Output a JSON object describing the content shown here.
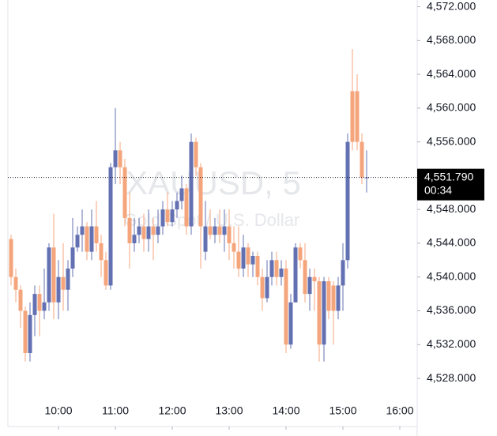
{
  "chart_data": {
    "type": "candlestick",
    "watermark_symbol": "XAUUSD, 5",
    "watermark_description": "Gold Spot / U.S. Dollar",
    "x": [
      0,
      1,
      2,
      3,
      4,
      5,
      6,
      7,
      8,
      9,
      10,
      11,
      12,
      13,
      14,
      15,
      16,
      17,
      18,
      19,
      20,
      21,
      22,
      23,
      24,
      25,
      26,
      27,
      28,
      29,
      30,
      31,
      32,
      33,
      34,
      35,
      36,
      37,
      38,
      39,
      40,
      41,
      42,
      43,
      44,
      45,
      46,
      47,
      48,
      49,
      50,
      51,
      52,
      53,
      54,
      55,
      56,
      57,
      58,
      59,
      60,
      61,
      62,
      63,
      64,
      65,
      66,
      67,
      68,
      69,
      70,
      71,
      72,
      73,
      74,
      75
    ],
    "open": [
      4544.5,
      4540,
      4538.5,
      4536,
      4531,
      4535.5,
      4538,
      4536,
      4537,
      4543.5,
      4537,
      4540,
      4538.5,
      4541,
      4543.5,
      4545,
      4546,
      4543,
      4546,
      4544,
      4542,
      4539,
      4553,
      4555,
      4553,
      4547,
      4544,
      4545,
      4546,
      4544.5,
      4546,
      4545,
      4546,
      4548,
      4546.5,
      4548,
      4549,
      4550.5,
      4546,
      4556,
      4553,
      4543,
      4546,
      4545,
      4546,
      4545,
      4546,
      4544,
      4543,
      4541,
      4543.5,
      4541.5,
      4542.5,
      4540,
      4537.5,
      4540,
      4542,
      4540,
      4541,
      4532,
      4537,
      4543.5,
      4542,
      4538,
      4540,
      4539.5,
      4532,
      4539.5,
      4539,
      4536,
      4539,
      4542,
      4562,
      4562,
      4556,
      4551.79
    ],
    "high": [
      4545,
      4541,
      4539,
      4536.5,
      4537,
      4539,
      4539,
      4541,
      4544,
      4547.5,
      4542,
      4544,
      4542,
      4547,
      4546,
      4548,
      4546.5,
      4548,
      4549,
      4545,
      4543,
      4553.5,
      4560,
      4556,
      4554,
      4550,
      4547,
      4547,
      4547.5,
      4548,
      4547,
      4548,
      4549,
      4550,
      4549,
      4550,
      4552,
      4551,
      4557,
      4556.5,
      4553.5,
      4549,
      4548,
      4547,
      4548,
      4548,
      4548,
      4546,
      4546,
      4545,
      4544,
      4543,
      4543,
      4541,
      4542,
      4543,
      4543,
      4542,
      4542,
      4538,
      4544,
      4544,
      4544,
      4541,
      4541,
      4540,
      4540,
      4540,
      4539.5,
      4540,
      4544,
      4557,
      4567,
      4564,
      4557,
      4555
    ],
    "low": [
      4539,
      4537,
      4534,
      4530,
      4530,
      4533,
      4533,
      4535,
      4536,
      4535,
      4535,
      4536,
      4536,
      4540,
      4543,
      4543,
      4542,
      4542,
      4543,
      4540,
      4538.5,
      4538.5,
      4551,
      4551,
      4546,
      4541,
      4543,
      4544,
      4543,
      4543,
      4542,
      4544,
      4545,
      4546,
      4546,
      4547,
      4548,
      4545,
      4545,
      4552,
      4541,
      4542,
      4544.5,
      4544,
      4544,
      4543,
      4542,
      4541,
      4540,
      4540,
      4540,
      4540,
      4539,
      4536,
      4537,
      4539,
      4539,
      4539,
      4531,
      4531.5,
      4537,
      4541,
      4537,
      4536,
      4536,
      4530,
      4530,
      4535,
      4532,
      4535,
      4536,
      4541,
      4555,
      4555,
      4551,
      4550
    ],
    "close": [
      4540,
      4538.5,
      4536,
      4531,
      4535.5,
      4538,
      4536,
      4537,
      4543.5,
      4537,
      4540,
      4538.5,
      4541,
      4543.5,
      4545,
      4546,
      4543,
      4546,
      4544,
      4542,
      4539,
      4553,
      4555,
      4553,
      4547,
      4544,
      4545,
      4546,
      4544.5,
      4546,
      4545,
      4546,
      4548,
      4546.5,
      4548,
      4549,
      4550.5,
      4546,
      4556,
      4553,
      4546,
      4546,
      4545,
      4546,
      4545,
      4546,
      4544,
      4543,
      4541,
      4543.5,
      4541.5,
      4542.5,
      4540,
      4537.5,
      4540,
      4542,
      4540,
      4541,
      4532,
      4537,
      4543.5,
      4542,
      4538,
      4540,
      4539.5,
      4532,
      4539.5,
      4536,
      4536,
      4539,
      4542,
      4556,
      4556,
      4556,
      4551.79,
      4551.79
    ],
    "up_color": "#6370b2",
    "down_color": "#f5a57c",
    "xlim": [
      -0.667,
      85.667
    ],
    "xticks": [
      {
        "value": 10,
        "label": "10:00"
      },
      {
        "value": 22,
        "label": "11:00"
      },
      {
        "value": 34,
        "label": "12:00"
      },
      {
        "value": 46,
        "label": "13:00"
      },
      {
        "value": 58,
        "label": "14:00"
      },
      {
        "value": 70,
        "label": "15:00"
      },
      {
        "value": 82,
        "label": "16:00"
      }
    ],
    "ylim": [
      4522.3,
      4572.8
    ],
    "yticks": [
      {
        "value": 4528,
        "label": "4,528.000"
      },
      {
        "value": 4532,
        "label": "4,532.000"
      },
      {
        "value": 4536,
        "label": "4,536.000"
      },
      {
        "value": 4540,
        "label": "4,540.000"
      },
      {
        "value": 4544,
        "label": "4,544.000"
      },
      {
        "value": 4548,
        "label": "4,548.000"
      },
      {
        "value": 4552,
        "label": "4,552.000"
      },
      {
        "value": 4556,
        "label": "4,556.000"
      },
      {
        "value": 4560,
        "label": "4,560.000"
      },
      {
        "value": 4564,
        "label": "4,564.000"
      },
      {
        "value": 4568,
        "label": "4,568.000"
      },
      {
        "value": 4572,
        "label": "4,572.000"
      }
    ],
    "last_price": {
      "value": 4551.79,
      "label": "4,551.790"
    },
    "countdown": "00:34"
  }
}
